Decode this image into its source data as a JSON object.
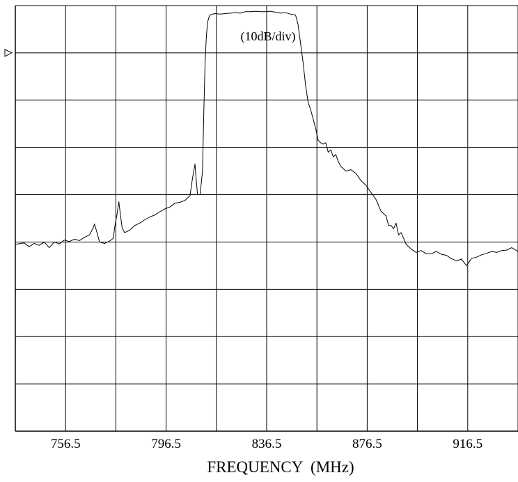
{
  "chart_data": {
    "type": "line",
    "title": "(10dB/div)",
    "xlabel": "FREQUENCY  (MHz)",
    "ylabel": "",
    "y_unit_per_division": 10,
    "xlim": [
      736.5,
      936.5
    ],
    "ylim": [
      -90,
      0
    ],
    "x_ticks": [
      756.5,
      796.5,
      836.5,
      876.5,
      916.5
    ],
    "x_tick_labels": [
      "756.5",
      "796.5",
      "836.5",
      "876.5",
      "916.5"
    ],
    "reference_marker": "triangle-right-icon",
    "grid": true,
    "legend": "none",
    "line_color": "#000000",
    "series": [
      {
        "values_x": [
          736.5,
          740,
          742,
          744,
          746,
          748,
          750,
          752,
          754,
          756,
          758,
          760,
          762,
          764,
          766,
          767.5,
          768,
          769,
          770,
          772,
          774,
          775.5,
          776,
          777,
          777.7,
          778.5,
          779,
          780,
          782,
          784,
          786,
          788,
          790,
          792,
          794,
          796,
          798,
          800,
          802,
          804,
          806,
          807,
          808,
          808.2,
          809,
          810,
          811,
          811.5,
          812,
          812.5,
          813,
          813.5,
          814,
          815,
          816,
          818,
          820,
          822,
          824,
          826,
          828,
          830,
          832,
          834,
          836,
          838,
          840,
          842,
          844,
          846,
          848,
          849,
          850,
          851,
          852,
          853,
          854,
          855,
          856,
          857,
          858,
          859,
          860,
          861,
          862,
          863,
          864,
          865,
          866,
          868,
          870,
          872,
          874,
          876,
          878,
          880,
          882,
          884,
          885,
          886,
          887,
          888,
          889,
          890,
          892,
          894,
          896,
          898,
          900,
          902,
          904,
          906,
          908,
          910,
          912,
          914,
          916,
          918,
          920,
          922,
          924,
          926,
          928,
          930,
          932,
          934,
          936.5
        ],
        "values_y": [
          -50.5,
          -50.2,
          -51,
          -50.3,
          -50.7,
          -50,
          -51.2,
          -50,
          -50.4,
          -49.6,
          -49.9,
          -49.4,
          -49.7,
          -49,
          -48.5,
          -47,
          -46.2,
          -48,
          -50,
          -50.3,
          -49.8,
          -49.2,
          -47,
          -44,
          -41.5,
          -45,
          -47,
          -48,
          -47.5,
          -46.5,
          -46,
          -45.3,
          -44.7,
          -44.3,
          -43.6,
          -43,
          -42.6,
          -41.8,
          -41.6,
          -41.2,
          -40.2,
          -36.5,
          -33.5,
          -35,
          -40,
          -40,
          -35,
          -22,
          -12,
          -6.5,
          -3.5,
          -2.5,
          -2,
          -1.8,
          -1.7,
          -1.8,
          -1.7,
          -1.6,
          -1.5,
          -1.6,
          -1.3,
          -1.3,
          -1.2,
          -1.3,
          -1.3,
          -1.2,
          -1.4,
          -1.6,
          -1.5,
          -1.8,
          -2,
          -4,
          -8,
          -12,
          -17,
          -20.5,
          -22,
          -24,
          -26,
          -28.5,
          -29,
          -29.3,
          -29,
          -31,
          -30.5,
          -32,
          -31.5,
          -33,
          -34,
          -35,
          -34.7,
          -35.5,
          -37,
          -38,
          -39.5,
          -41,
          -43.5,
          -44.5,
          -46.5,
          -46.5,
          -47.2,
          -46,
          -48.5,
          -48,
          -50.5,
          -51.5,
          -52.2,
          -51.8,
          -52.5,
          -52.5,
          -52,
          -52.6,
          -52.8,
          -53.5,
          -54,
          -53.6,
          -55,
          -53.5,
          -53.2,
          -52.7,
          -52.4,
          -52,
          -52.2,
          -51.8,
          -51.7,
          -51.2,
          -52
        ]
      }
    ]
  }
}
